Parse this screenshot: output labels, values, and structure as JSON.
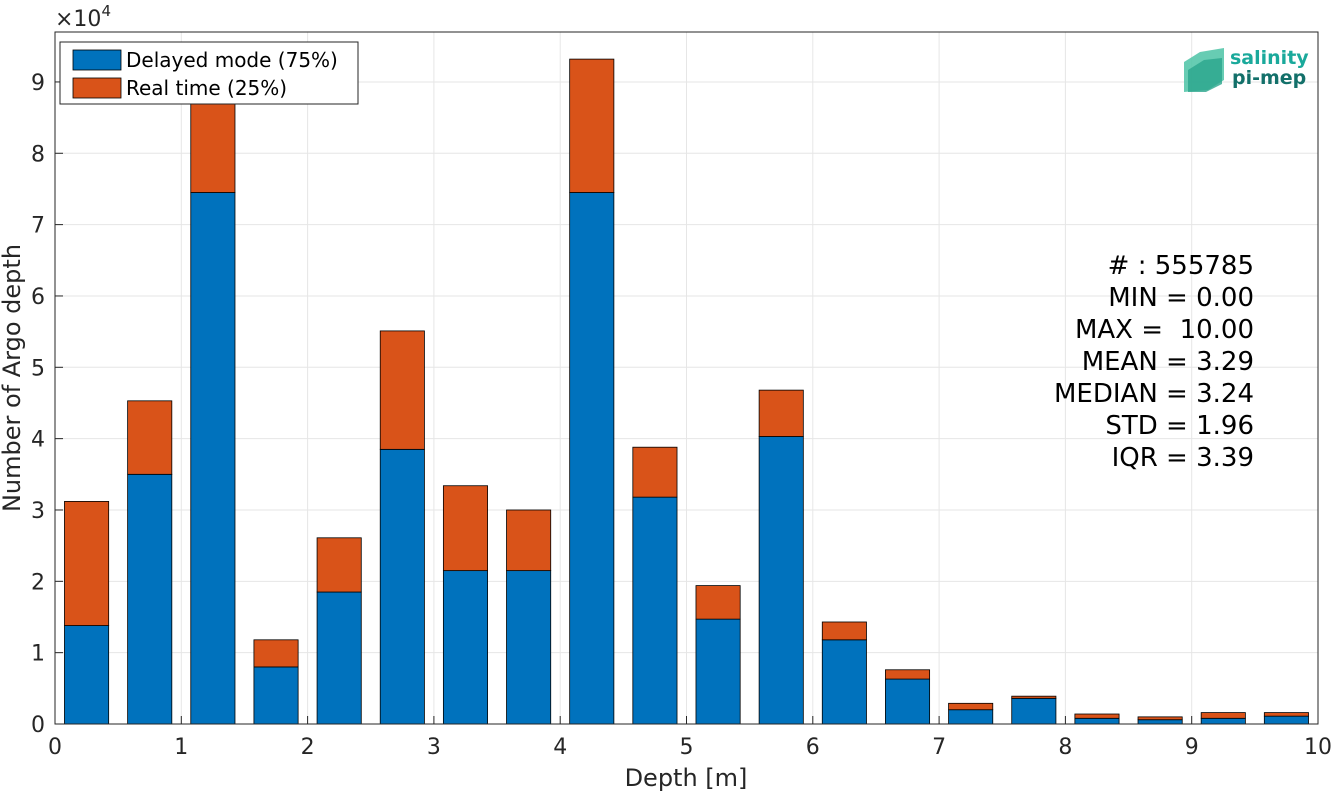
{
  "chart_data": {
    "type": "bar",
    "stacked": true,
    "xlabel": "Depth [m]",
    "ylabel": "Number of Argo depth",
    "multiplier_label": "×10",
    "multiplier_exponent": "4",
    "xlim": [
      0,
      10
    ],
    "ylim": [
      0,
      97000
    ],
    "grid": true,
    "legend_position": "top-left",
    "x_ticks": [
      "0",
      "1",
      "2",
      "3",
      "4",
      "5",
      "6",
      "7",
      "8",
      "9",
      "10"
    ],
    "y_ticks": [
      "0",
      "1",
      "2",
      "3",
      "4",
      "5",
      "6",
      "7",
      "8",
      "9"
    ],
    "bar_width": 0.35,
    "x": [
      0.25,
      0.75,
      1.25,
      1.75,
      2.25,
      2.75,
      3.25,
      3.75,
      4.25,
      4.75,
      5.25,
      5.75,
      6.25,
      6.75,
      7.25,
      7.75,
      8.25,
      8.75,
      9.25,
      9.75
    ],
    "series": [
      {
        "name": "Delayed mode (75%)",
        "color": "#0072bd",
        "values": [
          13800,
          35000,
          74500,
          8000,
          18500,
          38500,
          21500,
          21500,
          74500,
          31800,
          14700,
          40300,
          11800,
          6300,
          2000,
          3600,
          800,
          600,
          800,
          1100
        ]
      },
      {
        "name": "Real time (25%)",
        "color": "#d95319",
        "values": [
          17400,
          10300,
          16000,
          3800,
          7600,
          16600,
          11900,
          8500,
          18700,
          7000,
          4700,
          6500,
          2500,
          1300,
          900,
          300,
          600,
          400,
          800,
          500
        ]
      }
    ]
  },
  "stats": {
    "lines": [
      "# : 555785",
      "MIN = 0.00",
      "MAX =  10.00",
      "MEAN = 3.29",
      "MEDIAN = 3.24",
      "STD = 1.96",
      "IQR = 3.39"
    ]
  },
  "logo": {
    "line1": "salinity",
    "line2": "pi-mep",
    "color1": "#1aa99b",
    "color2": "#13706a"
  }
}
